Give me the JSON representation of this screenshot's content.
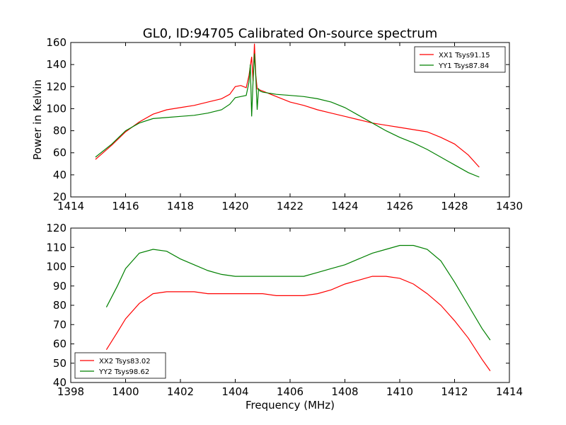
{
  "chart_data": [
    {
      "type": "line",
      "title": "GL0, ID:94705 Calibrated On-source spectrum",
      "xlabel": "",
      "ylabel": "Power in Kelvin",
      "xlim": [
        1414,
        1430
      ],
      "ylim": [
        20,
        160
      ],
      "xticks": [
        "1414",
        "1416",
        "1418",
        "1420",
        "1422",
        "1424",
        "1426",
        "1428",
        "1430"
      ],
      "yticks": [
        "20",
        "40",
        "60",
        "80",
        "100",
        "120",
        "140",
        "160"
      ],
      "legend": {
        "placement": "top-right"
      },
      "grid": false,
      "series": [
        {
          "name": "XX1 Tsys91.15",
          "color": "#ff0000",
          "x": [
            1414.9,
            1415.5,
            1416.0,
            1416.5,
            1417.0,
            1417.5,
            1418.0,
            1418.5,
            1419.0,
            1419.5,
            1419.8,
            1420.0,
            1420.2,
            1420.4,
            1420.5,
            1420.6,
            1420.65,
            1420.7,
            1420.75,
            1420.8,
            1420.9,
            1421.0,
            1421.5,
            1422.0,
            1422.5,
            1423.0,
            1423.5,
            1424.0,
            1424.5,
            1425.0,
            1425.5,
            1426.0,
            1426.5,
            1427.0,
            1427.5,
            1428.0,
            1428.5,
            1428.9
          ],
          "y": [
            54,
            67,
            79,
            88,
            95,
            99,
            101,
            103,
            106,
            109,
            113,
            120,
            121,
            119,
            130,
            147,
            125,
            159,
            130,
            118,
            117,
            116,
            111,
            106,
            103,
            99,
            96,
            93,
            90,
            87,
            85,
            83,
            81,
            79,
            74,
            68,
            58,
            47
          ]
        },
        {
          "name": "YY1 Tsys87.84",
          "color": "#008000",
          "x": [
            1414.9,
            1415.5,
            1416.0,
            1416.5,
            1417.0,
            1417.5,
            1418.0,
            1418.5,
            1419.0,
            1419.5,
            1419.8,
            1420.0,
            1420.2,
            1420.4,
            1420.5,
            1420.55,
            1420.6,
            1420.65,
            1420.7,
            1420.75,
            1420.8,
            1420.85,
            1420.9,
            1421.0,
            1421.5,
            1422.0,
            1422.5,
            1423.0,
            1423.5,
            1424.0,
            1424.5,
            1425.0,
            1425.5,
            1426.0,
            1426.5,
            1427.0,
            1427.5,
            1428.0,
            1428.5,
            1428.9
          ],
          "y": [
            56,
            68,
            80,
            87,
            91,
            92,
            93,
            94,
            96,
            99,
            104,
            110,
            111,
            112,
            124,
            140,
            93,
            125,
            150,
            128,
            99,
            118,
            116,
            115,
            113,
            112,
            111,
            109,
            106,
            101,
            94,
            87,
            80,
            74,
            69,
            63,
            56,
            49,
            42,
            38
          ]
        }
      ]
    },
    {
      "type": "line",
      "title": "",
      "xlabel": "Frequency (MHz)",
      "ylabel": "",
      "xlim": [
        1398,
        1414
      ],
      "ylim": [
        40,
        120
      ],
      "xticks": [
        "1398",
        "1400",
        "1402",
        "1404",
        "1406",
        "1408",
        "1410",
        "1412",
        "1414"
      ],
      "yticks": [
        "40",
        "50",
        "60",
        "70",
        "80",
        "90",
        "100",
        "110",
        "120"
      ],
      "legend": {
        "placement": "bottom-left"
      },
      "grid": false,
      "series": [
        {
          "name": "XX2 Tsys83.02",
          "color": "#ff0000",
          "x": [
            1399.3,
            1399.7,
            1400.0,
            1400.5,
            1401.0,
            1401.5,
            1402.0,
            1402.5,
            1403.0,
            1403.5,
            1404.0,
            1404.5,
            1405.0,
            1405.5,
            1406.0,
            1406.5,
            1407.0,
            1407.5,
            1408.0,
            1408.5,
            1409.0,
            1409.5,
            1410.0,
            1410.5,
            1411.0,
            1411.5,
            1412.0,
            1412.5,
            1413.0,
            1413.3
          ],
          "y": [
            57,
            66,
            73,
            81,
            86,
            87,
            87,
            87,
            86,
            86,
            86,
            86,
            86,
            85,
            85,
            85,
            86,
            88,
            91,
            93,
            95,
            95,
            94,
            91,
            86,
            80,
            72,
            63,
            52,
            46
          ]
        },
        {
          "name": "YY2 Tsys98.62",
          "color": "#008000",
          "x": [
            1399.3,
            1399.7,
            1400.0,
            1400.5,
            1401.0,
            1401.5,
            1402.0,
            1402.5,
            1403.0,
            1403.5,
            1404.0,
            1404.5,
            1405.0,
            1405.5,
            1406.0,
            1406.5,
            1407.0,
            1407.5,
            1408.0,
            1408.5,
            1409.0,
            1409.5,
            1410.0,
            1410.5,
            1411.0,
            1411.5,
            1412.0,
            1412.5,
            1413.0,
            1413.3
          ],
          "y": [
            79,
            90,
            99,
            107,
            109,
            108,
            104,
            101,
            98,
            96,
            95,
            95,
            95,
            95,
            95,
            95,
            97,
            99,
            101,
            104,
            107,
            109,
            111,
            111,
            109,
            103,
            92,
            80,
            68,
            62
          ]
        }
      ]
    }
  ]
}
